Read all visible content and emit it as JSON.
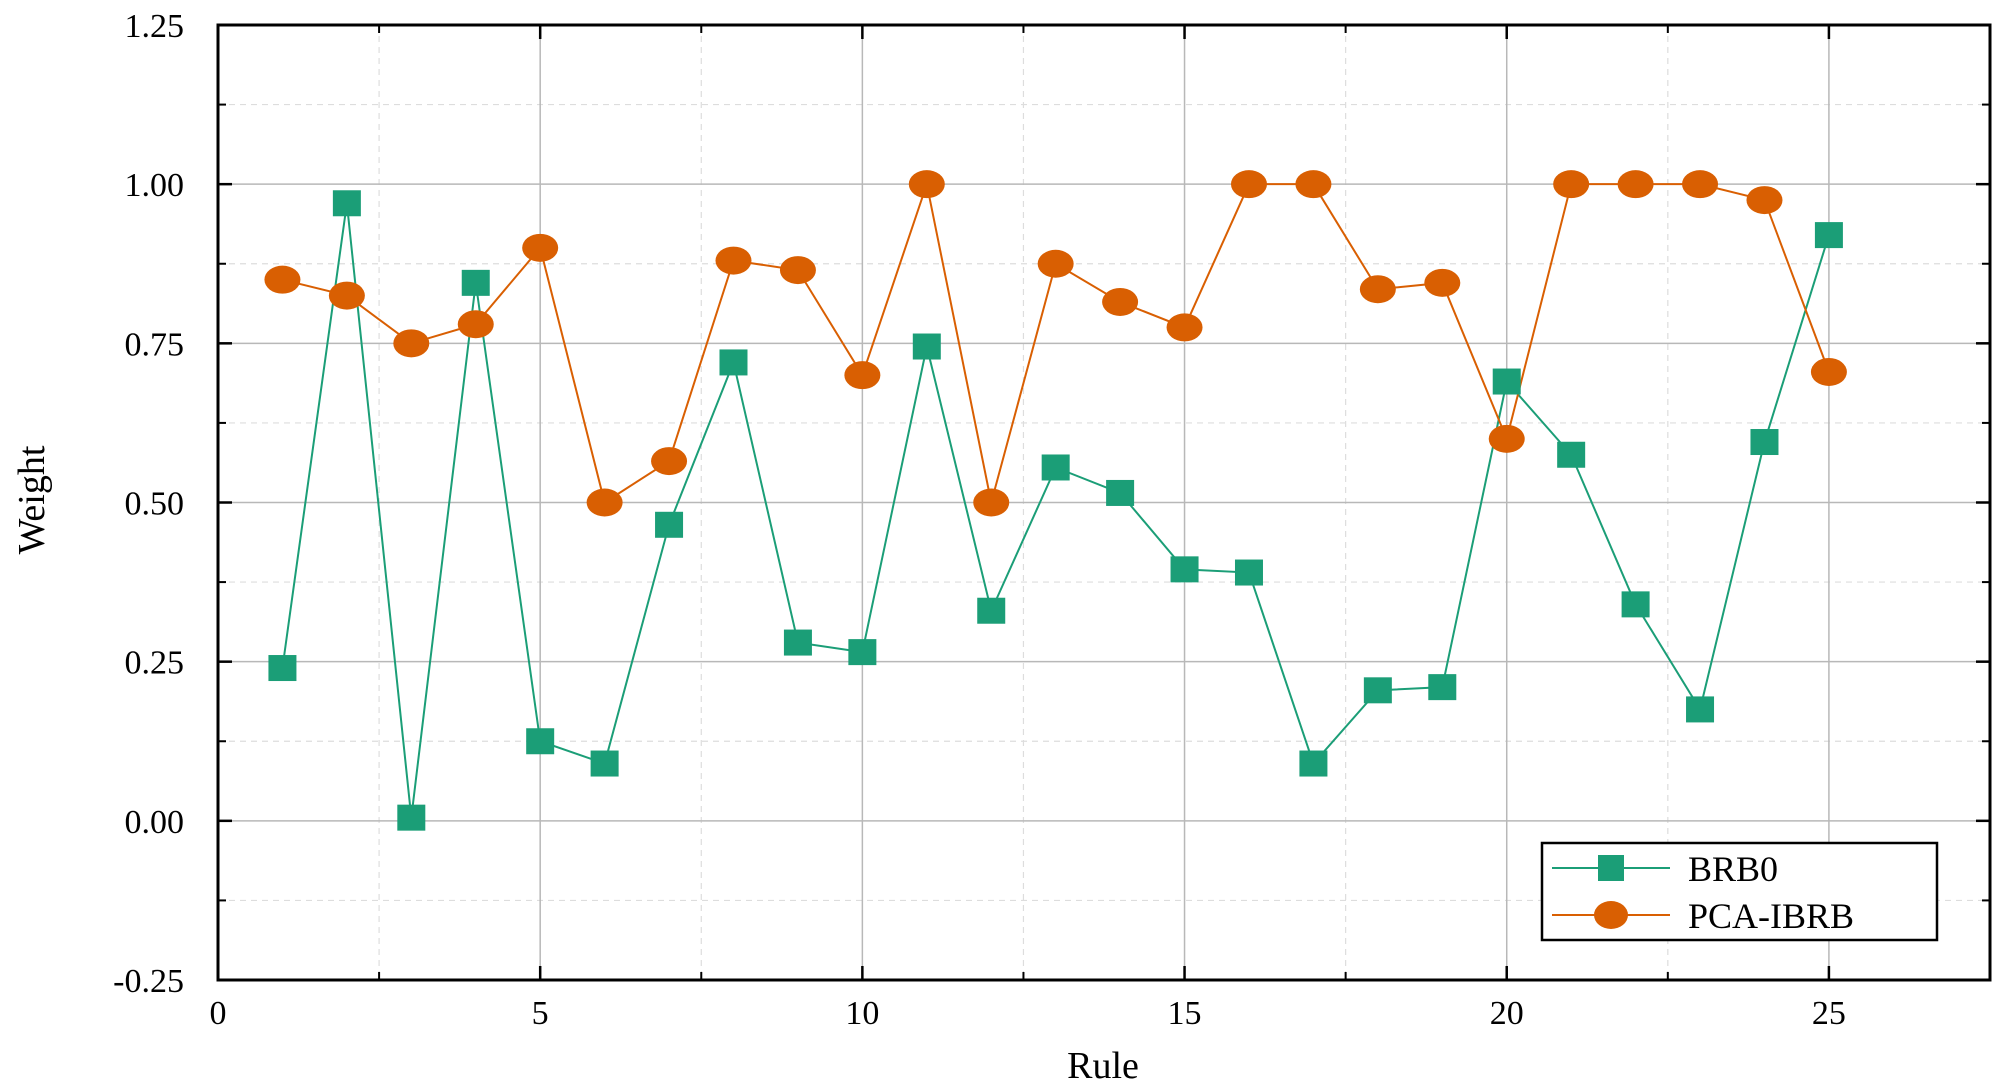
{
  "chart_data": {
    "type": "line",
    "xlabel": "Rule",
    "ylabel": "Weight",
    "xlim": [
      0,
      27.5
    ],
    "ylim": [
      -0.25,
      1.25
    ],
    "xticks": [
      0,
      5,
      10,
      15,
      20,
      25
    ],
    "xtick_labels": [
      "0",
      "5",
      "10",
      "15",
      "20",
      "25"
    ],
    "yticks": [
      -0.25,
      0,
      0.25,
      0.5,
      0.75,
      1.0,
      1.25
    ],
    "ytick_labels": [
      "-0.25",
      "0.00",
      "0.25",
      "0.50",
      "0.75",
      "1.00",
      "1.25"
    ],
    "grid": true,
    "legend_position": "bottom-right",
    "x": [
      1,
      2,
      3,
      4,
      5,
      6,
      7,
      8,
      9,
      10,
      11,
      12,
      13,
      14,
      15,
      16,
      17,
      18,
      19,
      20,
      21,
      22,
      23,
      24,
      25
    ],
    "series": [
      {
        "name": "BRB0",
        "marker": "square",
        "color": "#1b9e77",
        "values": [
          0.24,
          0.97,
          0.005,
          0.845,
          0.125,
          0.09,
          0.465,
          0.72,
          0.28,
          0.265,
          0.745,
          0.33,
          0.555,
          0.515,
          0.395,
          0.39,
          0.09,
          0.205,
          0.21,
          0.69,
          0.575,
          0.34,
          0.175,
          0.595,
          0.92
        ]
      },
      {
        "name": "PCA-IBRB",
        "marker": "circle",
        "color": "#d95f02",
        "values": [
          0.85,
          0.825,
          0.75,
          0.78,
          0.9,
          0.5,
          0.565,
          0.88,
          0.865,
          0.7,
          1.0,
          0.5,
          0.875,
          0.815,
          0.775,
          1.0,
          1.0,
          0.835,
          0.845,
          0.6,
          1.0,
          1.0,
          1.0,
          0.975,
          0.705
        ]
      }
    ]
  }
}
